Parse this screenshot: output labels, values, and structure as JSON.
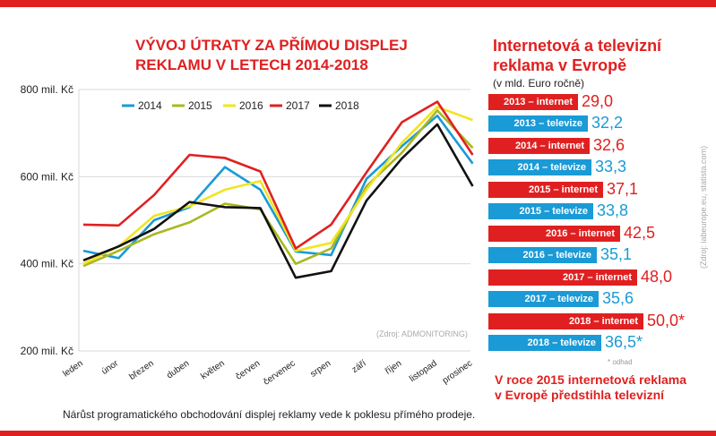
{
  "chart_title": "VÝVOJ ÚTRATY ZA PŘÍMOU DISPLEJ REKLAMU V LETECH 2014-2018",
  "caption": "Nárůst programatického obchodování displej reklamy vede k poklesu přímého prodeje.",
  "source_left": "(Zdroj: ADMONITORING)",
  "right_title": "Internetová a televizní reklama v Evropě",
  "right_subtitle": "(v mld. Euro ročně)",
  "estimate_note": "* odhad",
  "bottom_note": "V roce 2015 internetová reklama v Evropě předstihla televizní",
  "source_right": "(Zdroj: iabeurope.eu, statista.com)",
  "colors": {
    "accent": "#e02020",
    "tv": "#1a9ad6",
    "s2014": "#1a9ad6",
    "s2015": "#a8b820",
    "s2016": "#f2e420",
    "s2017": "#e02020",
    "s2018": "#111111"
  },
  "chart_data": [
    {
      "type": "line",
      "title": "VÝVOJ ÚTRATY ZA PŘÍMOU DISPLEJ REKLAMU V LETECH 2014-2018",
      "categories": [
        "leden",
        "únor",
        "březen",
        "duben",
        "květen",
        "červen",
        "červenec",
        "srpen",
        "září",
        "říjen",
        "listopad",
        "prosinec"
      ],
      "y_ticks": [
        "200 mil. Kč",
        "400 mil. Kč",
        "600 mil. Kč",
        "800 mil. Kč"
      ],
      "ylim": [
        200,
        800
      ],
      "grid": true,
      "legend": "top-left",
      "series": [
        {
          "name": "2014",
          "color": "#1a9ad6",
          "values": [
            430,
            413,
            500,
            530,
            622,
            570,
            428,
            420,
            595,
            670,
            740,
            630
          ]
        },
        {
          "name": "2015",
          "color": "#a8b820",
          "values": [
            395,
            430,
            468,
            495,
            538,
            525,
            400,
            435,
            578,
            655,
            752,
            666
          ]
        },
        {
          "name": "2016",
          "color": "#f2e420",
          "values": [
            400,
            440,
            510,
            532,
            570,
            590,
            430,
            448,
            570,
            678,
            760,
            730
          ]
        },
        {
          "name": "2017",
          "color": "#e02020",
          "values": [
            490,
            488,
            558,
            650,
            643,
            612,
            435,
            490,
            610,
            725,
            772,
            650
          ]
        },
        {
          "name": "2018",
          "color": "#111111",
          "values": [
            408,
            440,
            480,
            542,
            530,
            528,
            368,
            383,
            545,
            642,
            720,
            578
          ]
        }
      ]
    },
    {
      "type": "bar",
      "title": "Internetová a televizní reklama v Evropě",
      "subtitle": "(v mld. Euro ročně)",
      "bars": [
        {
          "label": "2013 – internet",
          "value": 29.0,
          "display": "29,0",
          "kind": "internet"
        },
        {
          "label": "2013 – televize",
          "value": 32.2,
          "display": "32,2",
          "kind": "televize"
        },
        {
          "label": "2014 – internet",
          "value": 32.6,
          "display": "32,6",
          "kind": "internet"
        },
        {
          "label": "2014 – televize",
          "value": 33.3,
          "display": "33,3",
          "kind": "televize"
        },
        {
          "label": "2015 – internet",
          "value": 37.1,
          "display": "37,1",
          "kind": "internet"
        },
        {
          "label": "2015 – televize",
          "value": 33.8,
          "display": "33,8",
          "kind": "televize"
        },
        {
          "label": "2016 – internet",
          "value": 42.5,
          "display": "42,5",
          "kind": "internet"
        },
        {
          "label": "2016 – televize",
          "value": 35.1,
          "display": "35,1",
          "kind": "televize"
        },
        {
          "label": "2017 – internet",
          "value": 48.0,
          "display": "48,0",
          "kind": "internet"
        },
        {
          "label": "2017 – televize",
          "value": 35.6,
          "display": "35,6",
          "kind": "televize"
        },
        {
          "label": "2018 – internet",
          "value": 50.0,
          "display": "50,0*",
          "kind": "internet"
        },
        {
          "label": "2018 – televize",
          "value": 36.5,
          "display": "36,5*",
          "kind": "televize"
        }
      ]
    }
  ]
}
